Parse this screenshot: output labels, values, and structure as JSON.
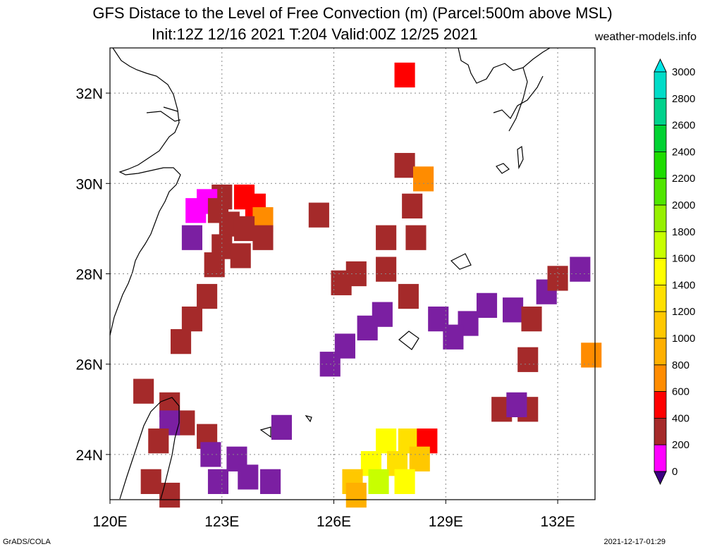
{
  "title": {
    "line1": "GFS Distace to the Level of Free Convection (m) (Parcel:500m above MSL)",
    "line2": "Init:12Z 12/16 2021 T:204 Valid:00Z 12/25 2021",
    "site": "weather-models.info"
  },
  "footer": {
    "left": "GrADS/COLA",
    "right": "2021-12-17-01:29"
  },
  "map": {
    "lon_range": [
      120,
      133
    ],
    "lat_range": [
      23,
      33
    ],
    "gridlines": true,
    "lon_ticks": [
      {
        "value": 120,
        "label": "120E"
      },
      {
        "value": 123,
        "label": "123E"
      },
      {
        "value": 126,
        "label": "126E"
      },
      {
        "value": 129,
        "label": "129E"
      },
      {
        "value": 132,
        "label": "132E"
      }
    ],
    "lat_ticks": [
      {
        "value": 24,
        "label": "24N"
      },
      {
        "value": 26,
        "label": "26N"
      },
      {
        "value": 28,
        "label": "28N"
      },
      {
        "value": 30,
        "label": "30N"
      },
      {
        "value": 32,
        "label": "32N"
      }
    ],
    "field_cells": [
      {
        "lon": 127.9,
        "lat": 32.4,
        "v": 700
      },
      {
        "lon": 123.0,
        "lat": 29.7,
        "v": 500
      },
      {
        "lon": 123.6,
        "lat": 29.7,
        "v": 600
      },
      {
        "lon": 123.9,
        "lat": 29.5,
        "v": 700
      },
      {
        "lon": 124.1,
        "lat": 29.2,
        "v": 800
      },
      {
        "lon": 123.2,
        "lat": 29.1,
        "v": 500
      },
      {
        "lon": 123.6,
        "lat": 29.0,
        "v": 500
      },
      {
        "lon": 124.1,
        "lat": 28.8,
        "v": 500
      },
      {
        "lon": 123.0,
        "lat": 28.6,
        "v": 500
      },
      {
        "lon": 123.5,
        "lat": 28.4,
        "v": 500
      },
      {
        "lon": 122.3,
        "lat": 29.4,
        "v": 350
      },
      {
        "lon": 122.6,
        "lat": 29.6,
        "v": 350
      },
      {
        "lon": 122.9,
        "lat": 29.4,
        "v": 400
      },
      {
        "lon": 122.2,
        "lat": 28.8,
        "v": 150
      },
      {
        "lon": 122.8,
        "lat": 28.2,
        "v": 500
      },
      {
        "lon": 122.6,
        "lat": 27.5,
        "v": 500
      },
      {
        "lon": 122.2,
        "lat": 27.0,
        "v": 500
      },
      {
        "lon": 121.9,
        "lat": 26.5,
        "v": 500
      },
      {
        "lon": 125.6,
        "lat": 29.3,
        "v": 500
      },
      {
        "lon": 127.9,
        "lat": 30.4,
        "v": 500
      },
      {
        "lon": 128.4,
        "lat": 30.1,
        "v": 800
      },
      {
        "lon": 128.1,
        "lat": 29.5,
        "v": 500
      },
      {
        "lon": 128.2,
        "lat": 28.8,
        "v": 500
      },
      {
        "lon": 127.4,
        "lat": 28.8,
        "v": 500
      },
      {
        "lon": 126.6,
        "lat": 28.0,
        "v": 400
      },
      {
        "lon": 127.4,
        "lat": 28.1,
        "v": 400
      },
      {
        "lon": 126.2,
        "lat": 27.8,
        "v": 400
      },
      {
        "lon": 128.0,
        "lat": 27.5,
        "v": 400
      },
      {
        "lon": 127.3,
        "lat": 27.1,
        "v": 150
      },
      {
        "lon": 126.9,
        "lat": 26.8,
        "v": 150
      },
      {
        "lon": 126.3,
        "lat": 26.4,
        "v": 150
      },
      {
        "lon": 125.9,
        "lat": 26.0,
        "v": 150
      },
      {
        "lon": 128.8,
        "lat": 27.0,
        "v": 150
      },
      {
        "lon": 129.6,
        "lat": 26.9,
        "v": 150
      },
      {
        "lon": 129.2,
        "lat": 26.6,
        "v": 50
      },
      {
        "lon": 130.1,
        "lat": 27.3,
        "v": 150
      },
      {
        "lon": 130.8,
        "lat": 27.2,
        "v": 50
      },
      {
        "lon": 131.3,
        "lat": 27.0,
        "v": 400
      },
      {
        "lon": 131.7,
        "lat": 27.6,
        "v": 150
      },
      {
        "lon": 132.0,
        "lat": 27.9,
        "v": 400
      },
      {
        "lon": 132.6,
        "lat": 28.1,
        "v": 150
      },
      {
        "lon": 131.2,
        "lat": 26.1,
        "v": 400
      },
      {
        "lon": 132.9,
        "lat": 26.2,
        "v": 800
      },
      {
        "lon": 120.9,
        "lat": 25.4,
        "v": 400
      },
      {
        "lon": 121.6,
        "lat": 25.1,
        "v": 400
      },
      {
        "lon": 122.0,
        "lat": 24.7,
        "v": 400
      },
      {
        "lon": 122.6,
        "lat": 24.4,
        "v": 400
      },
      {
        "lon": 121.6,
        "lat": 24.7,
        "v": 150
      },
      {
        "lon": 122.7,
        "lat": 24.0,
        "v": 150
      },
      {
        "lon": 123.4,
        "lat": 23.9,
        "v": 150
      },
      {
        "lon": 123.7,
        "lat": 23.5,
        "v": 150
      },
      {
        "lon": 122.9,
        "lat": 23.4,
        "v": 150
      },
      {
        "lon": 124.3,
        "lat": 23.4,
        "v": 50
      },
      {
        "lon": 124.6,
        "lat": 24.6,
        "v": 150
      },
      {
        "lon": 121.3,
        "lat": 24.3,
        "v": 500
      },
      {
        "lon": 121.1,
        "lat": 23.4,
        "v": 500
      },
      {
        "lon": 121.6,
        "lat": 23.1,
        "v": 400
      },
      {
        "lon": 130.5,
        "lat": 25.0,
        "v": 400
      },
      {
        "lon": 131.2,
        "lat": 25.0,
        "v": 400
      },
      {
        "lon": 130.9,
        "lat": 25.1,
        "v": 150
      },
      {
        "lon": 127.4,
        "lat": 24.3,
        "v": 1600
      },
      {
        "lon": 128.0,
        "lat": 24.3,
        "v": 1400
      },
      {
        "lon": 128.5,
        "lat": 24.3,
        "v": 700
      },
      {
        "lon": 127.0,
        "lat": 23.8,
        "v": 1700
      },
      {
        "lon": 127.7,
        "lat": 23.8,
        "v": 1500
      },
      {
        "lon": 128.3,
        "lat": 23.9,
        "v": 1200
      },
      {
        "lon": 126.5,
        "lat": 23.4,
        "v": 1300
      },
      {
        "lon": 127.2,
        "lat": 23.4,
        "v": 1900
      },
      {
        "lon": 127.9,
        "lat": 23.4,
        "v": 1600
      },
      {
        "lon": 126.6,
        "lat": 23.1,
        "v": 1100
      }
    ]
  },
  "colorbar": {
    "levels": [
      {
        "value": 0,
        "label": "0",
        "color": "#7b1fa2"
      },
      {
        "value": 200,
        "label": "200",
        "color": "#ff00ff"
      },
      {
        "value": 400,
        "label": "400",
        "color": "#a52a2a"
      },
      {
        "value": 600,
        "label": "600",
        "color": "#ff0000"
      },
      {
        "value": 800,
        "label": "800",
        "color": "#ff8c00"
      },
      {
        "value": 1000,
        "label": "1000",
        "color": "#ffb000"
      },
      {
        "value": 1200,
        "label": "1200",
        "color": "#ffc800"
      },
      {
        "value": 1400,
        "label": "1400",
        "color": "#ffe000"
      },
      {
        "value": 1600,
        "label": "1600",
        "color": "#ffff00"
      },
      {
        "value": 1800,
        "label": "1800",
        "color": "#c8ff00"
      },
      {
        "value": 2000,
        "label": "2000",
        "color": "#96f000"
      },
      {
        "value": 2200,
        "label": "2200",
        "color": "#50e600"
      },
      {
        "value": 2400,
        "label": "2400",
        "color": "#1edc00"
      },
      {
        "value": 2600,
        "label": "2600",
        "color": "#00d232"
      },
      {
        "value": 2800,
        "label": "2800",
        "color": "#00d28c"
      },
      {
        "value": 3000,
        "label": "3000",
        "color": "#00dcc8"
      }
    ],
    "below_color": "#3c0082",
    "above_color": "#00e6e6"
  }
}
